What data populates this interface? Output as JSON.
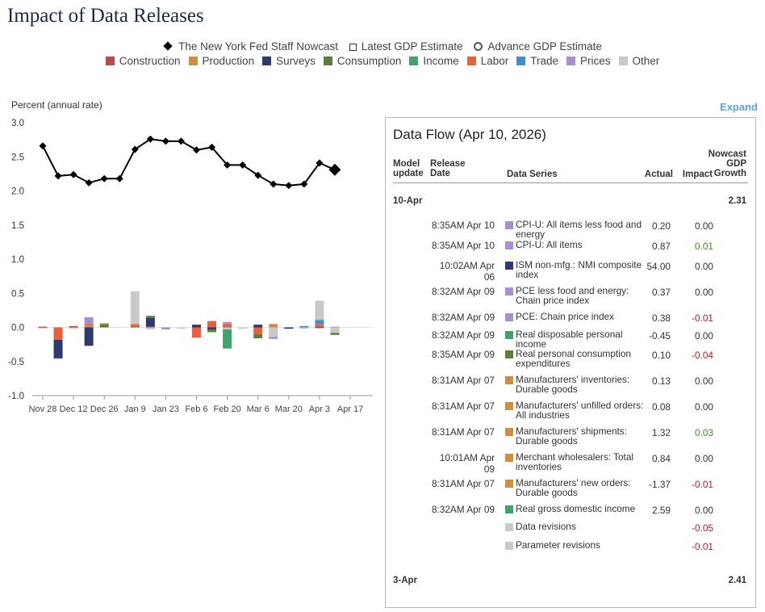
{
  "page_title": "Impact of Data Releases",
  "legend": {
    "markers": [
      {
        "label": "The New York Fed Staff Nowcast",
        "icon": "filled-diamond"
      },
      {
        "label": "Latest GDP Estimate",
        "icon": "open-square"
      },
      {
        "label": "Advance GDP Estimate",
        "icon": "open-circle"
      }
    ],
    "categories": [
      {
        "label": "Construction",
        "color": "#b84a4a"
      },
      {
        "label": "Production",
        "color": "#cf8f3e"
      },
      {
        "label": "Surveys",
        "color": "#2e3a6e"
      },
      {
        "label": "Consumption",
        "color": "#5b7f3a"
      },
      {
        "label": "Income",
        "color": "#3fa36a"
      },
      {
        "label": "Labor",
        "color": "#e8603c"
      },
      {
        "label": "Trade",
        "color": "#3f8fce"
      },
      {
        "label": "Prices",
        "color": "#a98fd0"
      },
      {
        "label": "Other",
        "color": "#c9c9c9"
      }
    ]
  },
  "expand_label": "Expand",
  "chart_data": {
    "type": "bar",
    "ylabel": "Percent (annual rate)",
    "ylim": [
      -1.0,
      3.0
    ],
    "yticks": [
      "3.0",
      "2.5",
      "2.0",
      "1.5",
      "1.0",
      "0.5",
      "0.0",
      "-0.5",
      "-1.0"
    ],
    "yticks_values": [
      3.0,
      2.5,
      2.0,
      1.5,
      1.0,
      0.5,
      0.0,
      -0.5,
      -1.0
    ],
    "x_tick_labels": [
      "Nov 28",
      "Dec 12",
      "Dec 26",
      "Jan 9",
      "Jan 23",
      "Feb 6",
      "Feb 20",
      "Mar 6",
      "Mar 20",
      "Apr 3",
      "Apr 17"
    ],
    "grid": false,
    "legend_placement": "top-center",
    "nowcast_series": {
      "name": "The New York Fed Staff Nowcast",
      "values": [
        2.66,
        2.22,
        2.24,
        2.12,
        2.18,
        2.18,
        2.61,
        2.76,
        2.73,
        2.73,
        2.6,
        2.64,
        2.38,
        2.38,
        2.23,
        2.1,
        2.08,
        2.1,
        2.41,
        2.31
      ]
    },
    "latest_point_index": 19,
    "contributions": [
      {
        "Construction": 0.01,
        "Labor": -0.01
      },
      {
        "Labor": -0.18,
        "Surveys": -0.27,
        "Trade": -0.01
      },
      {
        "Construction": 0.02,
        "Other": -0.02
      },
      {
        "Production": 0.03,
        "Labor": 0.02,
        "Prices": 0.1,
        "Surveys": -0.27
      },
      {
        "Consumption": 0.05,
        "Production": 0.01
      },
      {
        "Other": 0.0
      },
      {
        "Construction": 0.02,
        "Labor": 0.03,
        "Other": 0.48
      },
      {
        "Construction": 0.01,
        "Surveys": 0.13,
        "Consumption": 0.03,
        "Other": -0.03
      },
      {
        "Prices": -0.03
      },
      {
        "Other": -0.02
      },
      {
        "Labor": -0.15,
        "Surveys": 0.04
      },
      {
        "Labor": 0.09,
        "Other": 0.01,
        "Surveys": -0.03,
        "Consumption": -0.04
      },
      {
        "Labor": 0.05,
        "Prices": 0.03,
        "Other": -0.03,
        "Income": -0.28
      },
      {
        "Other": -0.02
      },
      {
        "Surveys": 0.04,
        "Labor": -0.1,
        "Consumption": -0.06
      },
      {
        "Production": 0.05,
        "Other": -0.14,
        "Prices": -0.03
      },
      {
        "Surveys": -0.02
      },
      {
        "Trade": 0.02,
        "Other": -0.02
      },
      {
        "Labor": 0.05,
        "Trade": 0.06,
        "Other": 0.28,
        "Surveys": -0.01
      },
      {
        "Production": 0.01,
        "Other": -0.08,
        "Consumption": -0.03
      }
    ]
  },
  "dataflow": {
    "title": "Data Flow (Apr 10, 2026)",
    "headers": {
      "model_update": "Model update",
      "release_date": "Release Date",
      "data_series": "Data Series",
      "actual": "Actual",
      "impact": "Impact",
      "nowcast": "Nowcast GDP Growth"
    },
    "groups": [
      {
        "label": "10-Apr",
        "value": "2.31",
        "rows": [
          {
            "time": "8:35AM Apr 10",
            "category": "Prices",
            "series": "CPI-U: All items less food and energy",
            "actual": "0.20",
            "impact": "0.00"
          },
          {
            "time": "8:35AM Apr 10",
            "category": "Prices",
            "series": "CPI-U: All items",
            "actual": "0.87",
            "impact": "0.01"
          },
          {
            "time": "10:02AM Apr 06",
            "category": "Surveys",
            "series": "ISM non-mfg.: NMI composite index",
            "actual": "54.00",
            "impact": "0.00"
          },
          {
            "time": "8:32AM Apr 09",
            "category": "Prices",
            "series": "PCE less food and energy: Chain price index",
            "actual": "0.37",
            "impact": "0.00"
          },
          {
            "time": "8:32AM Apr 09",
            "category": "Prices",
            "series": "PCE: Chain price index",
            "actual": "0.38",
            "impact": "-0.01"
          },
          {
            "time": "8:32AM Apr 09",
            "category": "Income",
            "series": "Real disposable personal income",
            "actual": "-0.45",
            "impact": "0.00"
          },
          {
            "time": "8:35AM Apr 09",
            "category": "Consumption",
            "series": "Real personal consumption expenditures",
            "actual": "0.10",
            "impact": "-0.04"
          },
          {
            "time": "8:31AM Apr 07",
            "category": "Production",
            "series": "Manufacturers' inventories: Durable goods",
            "actual": "0.13",
            "impact": "0.00"
          },
          {
            "time": "8:31AM Apr 07",
            "category": "Production",
            "series": "Manufacturers' unfilled orders: All industries",
            "actual": "0.08",
            "impact": "0.00"
          },
          {
            "time": "8:31AM Apr 07",
            "category": "Production",
            "series": "Manufacturers' shipments: Durable goods",
            "actual": "1.32",
            "impact": "0.03"
          },
          {
            "time": "10:01AM Apr 09",
            "category": "Production",
            "series": "Merchant wholesalers: Total inventories",
            "actual": "0.84",
            "impact": "0.00"
          },
          {
            "time": "8:31AM Apr 07",
            "category": "Production",
            "series": "Manufacturers' new orders: Durable goods",
            "actual": "-1.37",
            "impact": "-0.01"
          },
          {
            "time": "8:32AM Apr 09",
            "category": "Income",
            "series": "Real gross domestic income",
            "actual": "2.59",
            "impact": "0.00"
          },
          {
            "time": "",
            "category": "Other",
            "series": "Data revisions",
            "actual": "",
            "impact": "-0.05"
          },
          {
            "time": "",
            "category": "Other",
            "series": "Parameter revisions",
            "actual": "",
            "impact": "-0.01"
          }
        ]
      },
      {
        "label": "3-Apr",
        "value": "2.41",
        "rows": []
      }
    ]
  }
}
